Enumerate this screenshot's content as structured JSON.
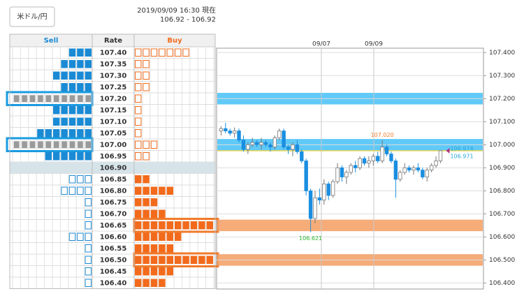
{
  "header": {
    "pair_button": "米ドル/円",
    "timestamp": "2019/09/09 16:30 現在",
    "quote": "106.92 - 106.92"
  },
  "order_book": {
    "columns": [
      "Sell",
      "Rate",
      "Buy"
    ],
    "sell_color": "#1a8ad4",
    "buy_color": "#f26a1b",
    "rows": [
      {
        "rate": "107.40",
        "sell": 3,
        "buy": 7
      },
      {
        "rate": "107.35",
        "sell": 4,
        "buy": 2
      },
      {
        "rate": "107.30",
        "sell": 5,
        "buy": 2
      },
      {
        "rate": "107.25",
        "sell": 4,
        "buy": 2
      },
      {
        "rate": "107.20",
        "sell": 10,
        "buy": 1,
        "highlight": "sell"
      },
      {
        "rate": "107.15",
        "sell": 5,
        "buy": 1
      },
      {
        "rate": "107.10",
        "sell": 5,
        "buy": 1
      },
      {
        "rate": "107.05",
        "sell": 7,
        "buy": 1
      },
      {
        "rate": "107.00",
        "sell": 10,
        "buy": 3,
        "highlight": "sell"
      },
      {
        "rate": "106.95",
        "sell": 6,
        "buy": 2
      },
      {
        "rate": "106.90",
        "sell": 0,
        "buy": 0,
        "current": true
      },
      {
        "rate": "106.85",
        "sell": 3,
        "buy": 2
      },
      {
        "rate": "106.80",
        "sell": 4,
        "buy": 5
      },
      {
        "rate": "106.75",
        "sell": 1,
        "buy": 3
      },
      {
        "rate": "106.70",
        "sell": 1,
        "buy": 4
      },
      {
        "rate": "106.65",
        "sell": 1,
        "buy": 10,
        "highlight": "buy"
      },
      {
        "rate": "106.60",
        "sell": 3,
        "buy": 6
      },
      {
        "rate": "106.55",
        "sell": 1,
        "buy": 5
      },
      {
        "rate": "106.50",
        "sell": 1,
        "buy": 10,
        "highlight": "buy"
      },
      {
        "rate": "106.45",
        "sell": 1,
        "buy": 5
      },
      {
        "rate": "106.40",
        "sell": 1,
        "buy": 4
      }
    ]
  },
  "chart_data": {
    "type": "candlestick",
    "x": [
      0,
      1,
      2,
      3,
      4,
      5,
      6,
      7,
      8,
      9,
      10,
      11,
      12,
      13,
      14,
      15,
      16,
      17,
      18,
      19,
      20,
      21,
      22,
      23,
      24,
      25,
      26,
      27,
      28,
      29,
      30,
      31,
      32,
      33,
      34,
      35,
      36,
      37,
      38,
      39,
      40,
      41,
      42,
      43,
      44,
      45,
      46,
      47,
      48,
      49
    ],
    "open": [
      107.06,
      107.07,
      107.06,
      107.05,
      107.06,
      107.02,
      106.98,
      107.0,
      107.01,
      107.0,
      107.01,
      107.0,
      106.99,
      107.03,
      107.06,
      106.99,
      106.98,
      107.0,
      106.97,
      106.93,
      106.8,
      106.68,
      106.77,
      106.76,
      106.83,
      106.78,
      106.84,
      106.9,
      106.86,
      106.88,
      106.91,
      106.9,
      106.94,
      106.92,
      106.93,
      106.95,
      106.93,
      106.99,
      106.96,
      106.93,
      106.85,
      106.88,
      106.9,
      106.89,
      106.9,
      106.89,
      106.86,
      106.89,
      106.91,
      106.93
    ],
    "high": [
      107.08,
      107.095,
      107.07,
      107.075,
      107.07,
      107.04,
      107.01,
      107.03,
      107.02,
      107.03,
      107.02,
      107.01,
      107.04,
      107.07,
      107.07,
      107.0,
      107.01,
      107.02,
      106.98,
      106.94,
      106.81,
      106.8,
      106.81,
      106.85,
      106.84,
      106.85,
      106.92,
      106.91,
      106.89,
      106.92,
      106.93,
      106.95,
      106.95,
      106.95,
      106.96,
      106.97,
      107.02,
      107.0,
      106.97,
      106.94,
      106.89,
      106.92,
      106.91,
      106.91,
      106.92,
      106.9,
      106.9,
      106.92,
      106.95,
      106.976
    ],
    "low": [
      107.04,
      107.05,
      107.04,
      107.03,
      107.01,
      106.97,
      106.96,
      106.99,
      106.99,
      106.98,
      106.99,
      106.97,
      106.98,
      107.02,
      106.98,
      106.96,
      106.95,
      106.96,
      106.92,
      106.78,
      106.621,
      106.66,
      106.74,
      106.74,
      106.76,
      106.77,
      106.83,
      106.84,
      106.83,
      106.87,
      106.88,
      106.89,
      106.91,
      106.9,
      106.91,
      106.92,
      106.92,
      106.95,
      106.92,
      106.77,
      106.84,
      106.87,
      106.88,
      106.87,
      106.88,
      106.85,
      106.84,
      106.88,
      106.9,
      106.92
    ],
    "close": [
      107.07,
      107.06,
      107.05,
      107.06,
      107.02,
      106.98,
      107.0,
      107.01,
      107.0,
      107.01,
      107.0,
      106.99,
      107.03,
      107.06,
      106.99,
      106.98,
      107.0,
      106.97,
      106.93,
      106.8,
      106.68,
      106.77,
      106.76,
      106.83,
      106.78,
      106.84,
      106.9,
      106.86,
      106.88,
      106.91,
      106.9,
      106.94,
      106.92,
      106.93,
      106.95,
      106.93,
      106.99,
      106.96,
      106.93,
      106.85,
      106.88,
      106.9,
      106.89,
      106.9,
      106.89,
      106.86,
      106.89,
      106.91,
      106.93,
      106.974
    ],
    "up_color": "#ffffff",
    "down_color": "#1a8ee0",
    "price_line_color": "#e8d44d",
    "xlim": [
      -1,
      58.6
    ],
    "xticks": [
      {
        "value": 22.4,
        "label": "09/07"
      },
      {
        "value": 34.1,
        "label": "09/09"
      }
    ],
    "ylim": [
      106.374,
      107.419
    ],
    "yticks": [
      {
        "value": 107.4,
        "label": "107.400"
      },
      {
        "value": 107.3,
        "label": "107.300"
      },
      {
        "value": 107.2,
        "label": "107.200"
      },
      {
        "value": 107.1,
        "label": "107.100"
      },
      {
        "value": 107.0,
        "label": "107.000"
      },
      {
        "value": 106.9,
        "label": "106.900"
      },
      {
        "value": 106.8,
        "label": "106.800"
      },
      {
        "value": 106.7,
        "label": "106.700"
      },
      {
        "value": 106.6,
        "label": "106.600"
      },
      {
        "value": 106.5,
        "label": "106.500"
      },
      {
        "value": 106.4,
        "label": "106.400"
      }
    ],
    "annotations": [
      {
        "label": "107.020",
        "value": 107.02,
        "x": 36,
        "color": "#f07a2a"
      },
      {
        "label": "106.621",
        "value": 106.621,
        "x": 20,
        "color": "#2eb82e"
      },
      {
        "label": "106.974",
        "value": 106.974,
        "color": "#2aa6d8"
      },
      {
        "label": "106.971",
        "value": 106.971,
        "color": "#2aa6d8"
      }
    ]
  }
}
